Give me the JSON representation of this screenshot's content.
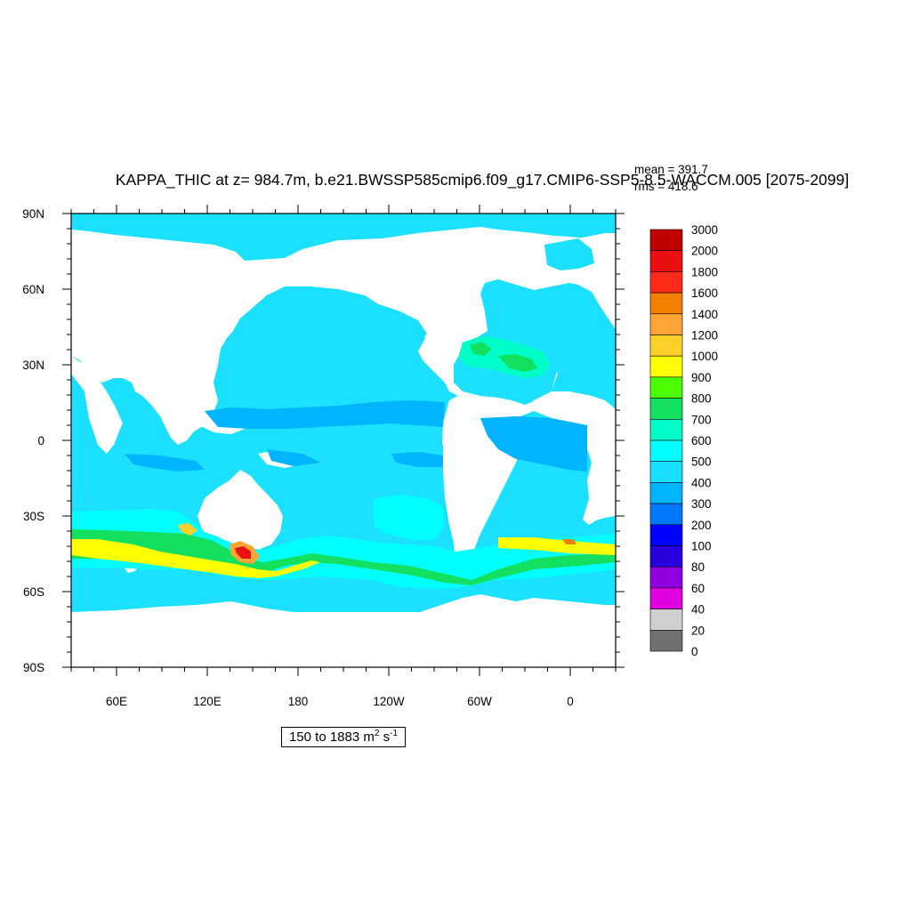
{
  "map": {
    "title": "KAPPA_THIC at z= 984.7m, b.e21.BWSSP585cmip6.f09_g17.CMIP6-SSP5-8.5-WACCM.005 [2075-2099]",
    "stats": {
      "mean": "mean = 391.7",
      "rms": "rms = 418.6"
    },
    "lat_ticks": [
      "90N",
      "60N",
      "30N",
      "0",
      "30S",
      "60S",
      "90S"
    ],
    "lon_ticks": [
      "60E",
      "120E",
      "180",
      "120W",
      "60W",
      "0"
    ],
    "range_label": {
      "text": "150 to 1883 m",
      "sup1": "2",
      "mid": " s",
      "sup2": "-1"
    },
    "colorbar": {
      "levels": [
        "3000",
        "2000",
        "1800",
        "1600",
        "1400",
        "1200",
        "1000",
        "900",
        "800",
        "700",
        "600",
        "500",
        "400",
        "300",
        "200",
        "100",
        "80",
        "60",
        "40",
        "20",
        "0"
      ],
      "colors": [
        "#c00000",
        "#e81010",
        "#ff2a1a",
        "#f28000",
        "#ffa535",
        "#ffd02a",
        "#ffff00",
        "#4cff00",
        "#14e060",
        "#00ffc8",
        "#00ffff",
        "#18e0ff",
        "#00b4ff",
        "#0078ff",
        "#0000ff",
        "#2800e0",
        "#9000e0",
        "#e000e0",
        "#d0d0d0",
        "#707070"
      ]
    },
    "ocean_color": "#1ce0ff",
    "land_color": "#ffffff"
  }
}
